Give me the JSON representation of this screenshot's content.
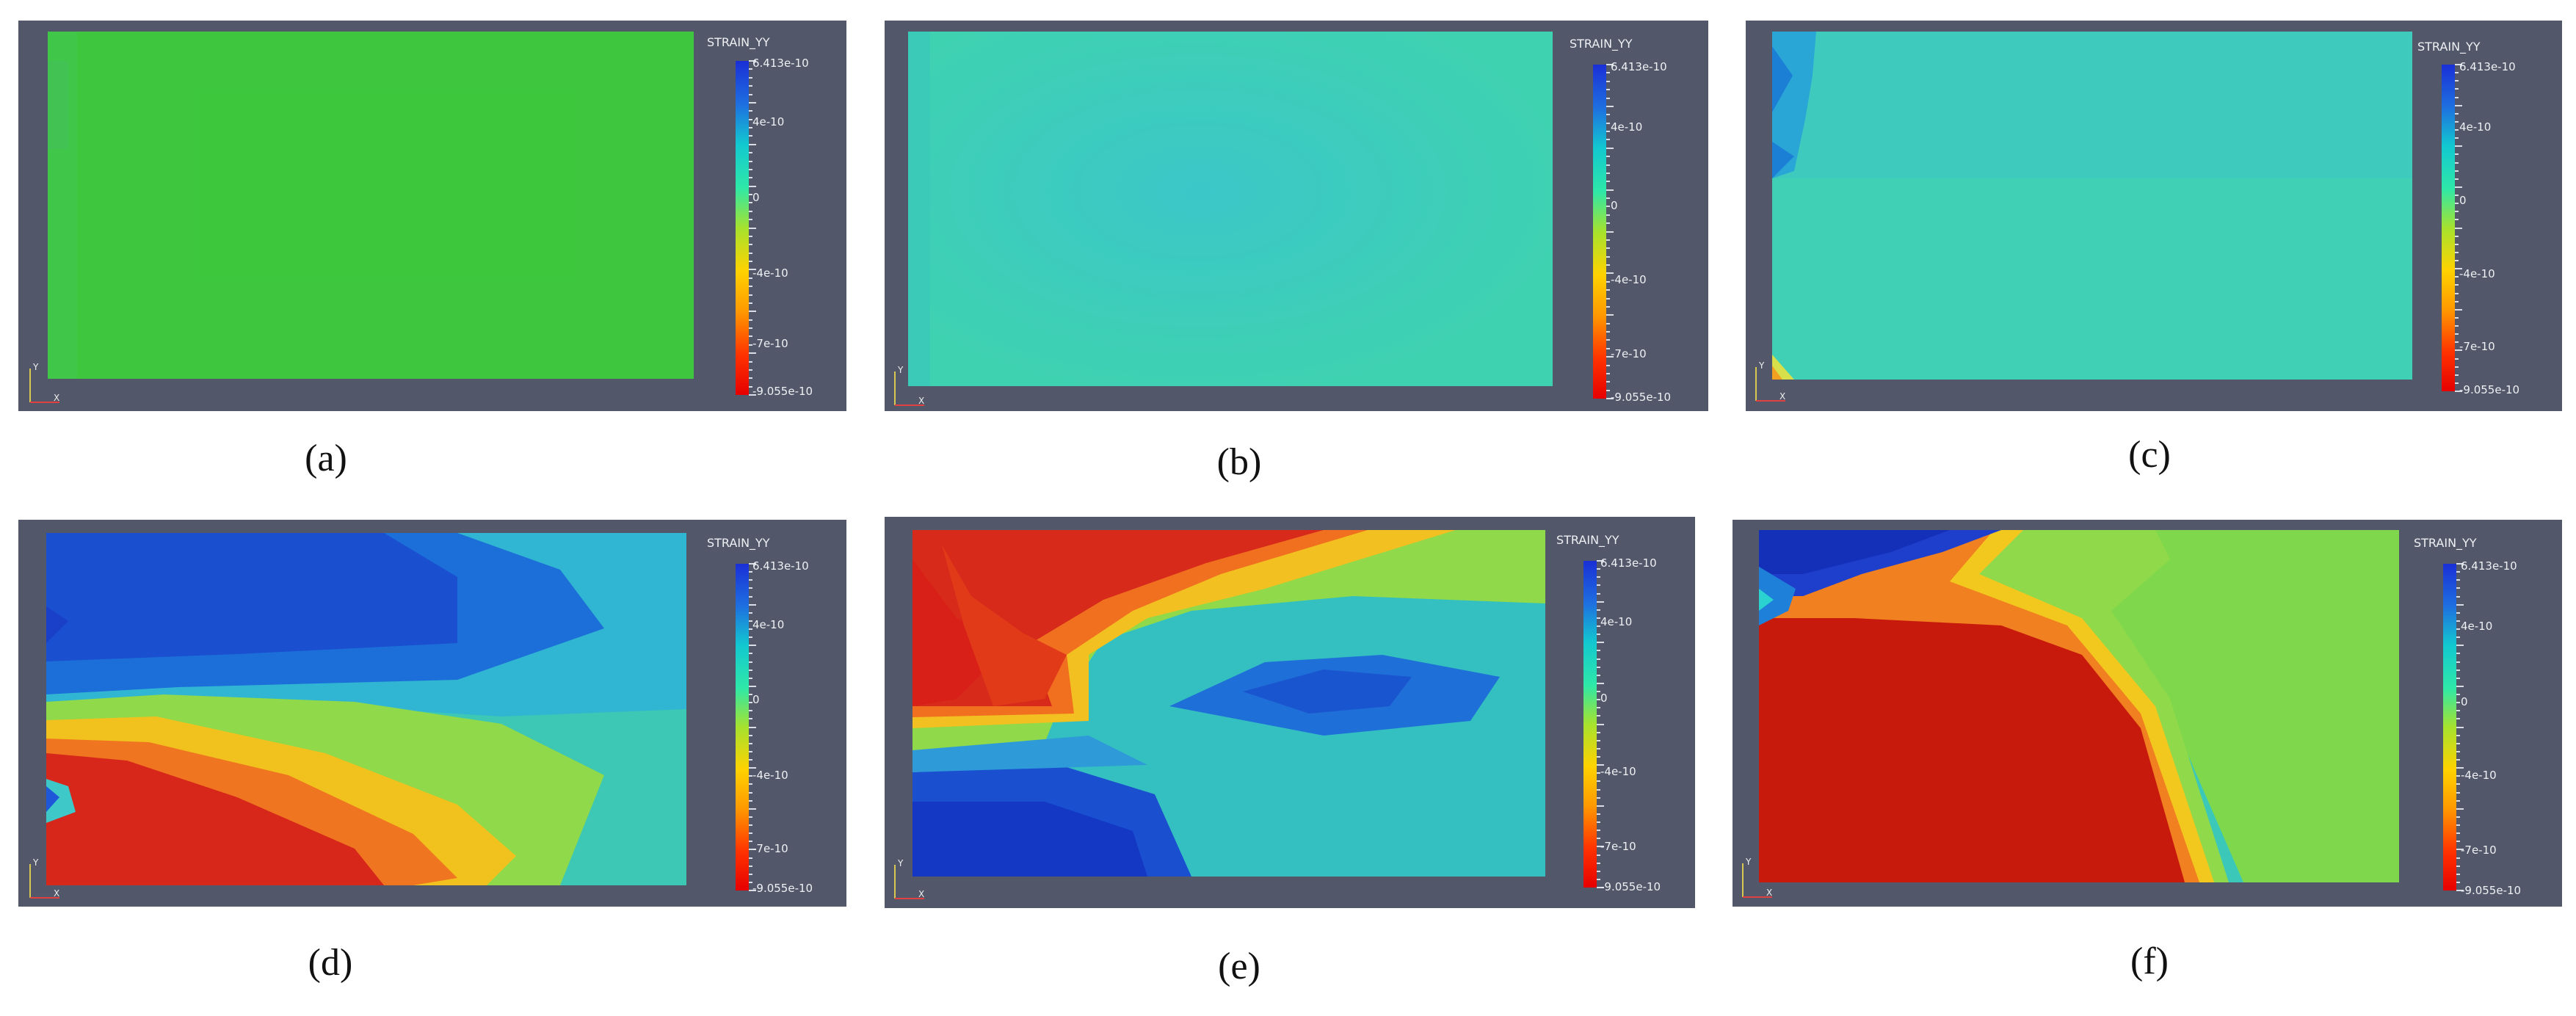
{
  "colorbar": {
    "title": "STRAIN_YY",
    "ticks": [
      "6.413e-10",
      "4e-10",
      "0",
      "-4e-10",
      "-7e-10",
      "-9.055e-10"
    ],
    "range": [
      -9.055e-10,
      6.413e-10
    ],
    "colormap": [
      "#e60000",
      "#ff3300",
      "#ff9900",
      "#ffd200",
      "#a6e22e",
      "#2ee8a8",
      "#12c8d0",
      "#1e6fe0",
      "#1a2fd6"
    ]
  },
  "colors": {
    "background": "#525869",
    "red": "#c71a0c",
    "green": "#3cc43c",
    "cyan": "#3ed3b4",
    "blue": "#1d4fd0"
  },
  "panels": [
    {
      "caption": "(a)",
      "dominant": "green"
    },
    {
      "caption": "(b)",
      "dominant": "cyan"
    },
    {
      "caption": "(c)",
      "dominant": "cyan"
    },
    {
      "caption": "(d)",
      "dominant": "mixed"
    },
    {
      "caption": "(e)",
      "dominant": "mixed"
    },
    {
      "caption": "(f)",
      "dominant": "red"
    }
  ]
}
